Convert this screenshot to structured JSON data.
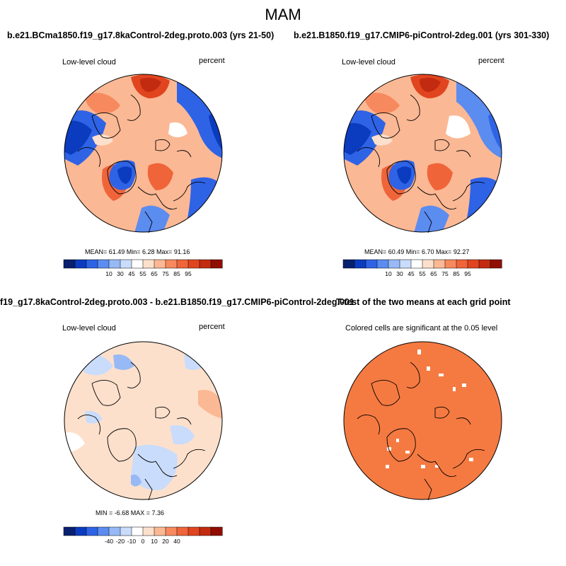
{
  "figure": {
    "title": "MAM"
  },
  "panels": {
    "top_left": {
      "title": "b.e21.BCma1850.f19_g17.8kaControl-2deg.proto.003 (yrs 21-50)",
      "left_label": "Low-level cloud",
      "right_label": "percent",
      "stats": "MEAN=  61.49  Min=   6.28  Max=  91.16"
    },
    "top_right": {
      "title": "b.e21.B1850.f19_g17.CMIP6-piControl-2deg.001 (yrs 301-330)",
      "left_label": "Low-level cloud",
      "right_label": "percent",
      "stats": "MEAN=  60.49  Min=   6.70  Max=  92.27"
    },
    "bottom_left": {
      "title": "f19_g17.8kaControl-2deg.proto.003 - b.e21.B1850.f19_g17.CMIP6-piControl-2deg.001",
      "left_label": "Low-level cloud",
      "right_label": "percent",
      "stats": "MIN =  -6.68 MAX =   7.36"
    },
    "bottom_right": {
      "title": "T-test of the two means at each grid point",
      "subtitle": "Colored cells are significant at the 0.05 level"
    }
  },
  "colorbars": {
    "absolute": {
      "labels": [
        "10",
        "30",
        "45",
        "55",
        "65",
        "75",
        "85",
        "95"
      ],
      "colors": [
        "#08206e",
        "#0b3bbf",
        "#2e63e6",
        "#5b8cf0",
        "#97b9f5",
        "#c9dcfb",
        "#ffffff",
        "#fde0cc",
        "#fbb894",
        "#f7895e",
        "#f0643a",
        "#e0451f",
        "#c22b10",
        "#900d02"
      ]
    },
    "difference": {
      "labels": [
        "-40",
        "-20",
        "-10",
        "0",
        "10",
        "20",
        "40"
      ],
      "colors": [
        "#08206e",
        "#0b3bbf",
        "#2e63e6",
        "#5b8cf0",
        "#97b9f5",
        "#c9dcfb",
        "#ffffff",
        "#fde0cc",
        "#fbb894",
        "#f7895e",
        "#f0643a",
        "#e0451f",
        "#c22b10",
        "#900d02"
      ]
    },
    "significant_color": "#f57a41"
  }
}
